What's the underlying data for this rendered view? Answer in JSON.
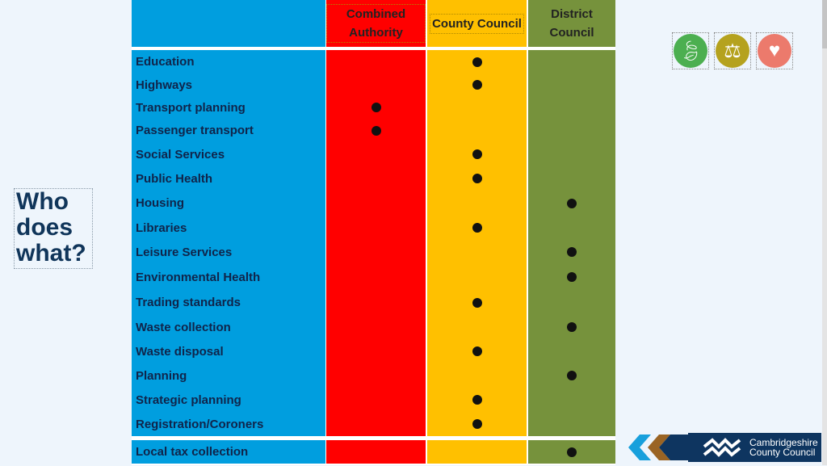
{
  "title": "Who does what?",
  "columns": {
    "label": "",
    "ca": "Combined Authority",
    "cc": "County Council",
    "dc": "District Council"
  },
  "rows": [
    {
      "service": "Education",
      "resp": "cc"
    },
    {
      "service": "Highways",
      "resp": "cc"
    },
    {
      "service": "Transport planning",
      "resp": "ca"
    },
    {
      "service": "Passenger transport",
      "resp": "ca"
    },
    {
      "service": "Social Services",
      "resp": "cc"
    },
    {
      "service": "Public Health",
      "resp": "cc"
    },
    {
      "service": "Housing",
      "resp": "dc"
    },
    {
      "service": "Libraries",
      "resp": "cc"
    },
    {
      "service": "Leisure Services",
      "resp": "dc"
    },
    {
      "service": "Environmental Health",
      "resp": "dc"
    },
    {
      "service": "Trading standards",
      "resp": "cc"
    },
    {
      "service": "Waste collection",
      "resp": "dc"
    },
    {
      "service": "Waste disposal",
      "resp": "cc"
    },
    {
      "service": "Planning",
      "resp": "dc"
    },
    {
      "service": "Strategic planning",
      "resp": "cc"
    },
    {
      "service": "Registration/Coroners",
      "resp": "cc"
    },
    {
      "service": "Local tax collection",
      "resp": "dc"
    }
  ],
  "icons": [
    "leaf-plus-icon",
    "scales-icon",
    "heart-cycle-icon"
  ],
  "logo": {
    "line1": "Cambridgeshire",
    "line2": "County Council"
  },
  "colors": {
    "label": "#009edf",
    "ca": "#ff0000",
    "cc": "#ffc000",
    "dc": "#76923c"
  }
}
